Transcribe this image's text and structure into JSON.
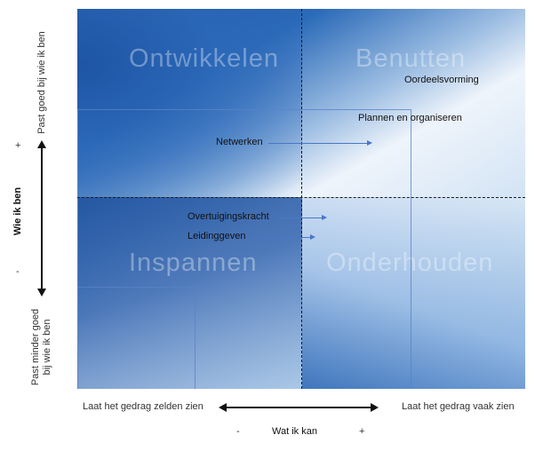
{
  "quadrants": {
    "top_left": "Ontwikkelen",
    "top_right": "Benutten",
    "bottom_left": "Inspannen",
    "bottom_right": "Onderhouden"
  },
  "items": [
    {
      "label": "Oordeelsvorming",
      "arrow": false
    },
    {
      "label": "Plannen en organiseren",
      "arrow": false
    },
    {
      "label": "Netwerken",
      "arrow": true
    },
    {
      "label": "Overtuigingskracht",
      "arrow": true
    },
    {
      "label": "Leidinggeven",
      "arrow": true
    }
  ],
  "y_axis": {
    "title": "Wie ik ben",
    "top_label": "Past goed bij wie ik ben",
    "bottom_label_line1": "Past minder goed",
    "bottom_label_line2": "bij wie ik ben",
    "plus": "+",
    "minus": "-"
  },
  "x_axis": {
    "title": "Wat ik kan",
    "left_label": "Laat het gedrag zelden zien",
    "right_label": "Laat het gedrag vaak zien",
    "plus": "+",
    "minus": "-"
  },
  "colors": {
    "dark_blue": "#1b4f9c",
    "light_blue": "#e1ecf8",
    "arrow": "#4a76c8"
  }
}
